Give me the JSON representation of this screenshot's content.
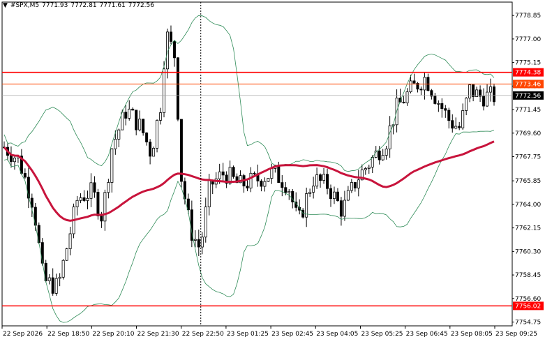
{
  "header": {
    "menu_arrow": "▼",
    "symbol": "#SPX,M5",
    "open": "7771.93",
    "high": "7772.81",
    "low": "7771.61",
    "close": "7772.56"
  },
  "price_axis": {
    "ticks": [
      "7778.85",
      "7777.00",
      "7775.15",
      "7773.30",
      "7771.45",
      "7769.60",
      "7767.75",
      "7765.85",
      "7764.00",
      "7762.15",
      "7760.30",
      "7758.45",
      "7756.60",
      "7754.75"
    ],
    "ylim": [
      7754.45,
      7779.9
    ]
  },
  "time_axis": {
    "ticks": [
      "22 Sep 2026",
      "22 Sep 18:50",
      "22 Sep 20:10",
      "22 Sep 21:30",
      "22 Sep 22:50",
      "23 Sep 01:25",
      "23 Sep 02:45",
      "23 Sep 04:05",
      "23 Sep 05:25",
      "23 Sep 06:45",
      "23 Sep 08:05",
      "23 Sep 09:25"
    ]
  },
  "price_labels": {
    "resistance_top": "7774.38",
    "resistance_mid": "7773.46",
    "current": "7772.56",
    "support": "7756.02"
  },
  "colors": {
    "resistance_line": "#ff0000",
    "resistance_mid_line": "#ff4500",
    "support_line": "#ff0000",
    "moving_average": "#c8143c",
    "bollinger": "#2e8b57",
    "candles": "#000000",
    "current_label_bg": "#000000",
    "grid": "#c0c0c0"
  },
  "chart_data": {
    "type": "candlestick",
    "series": [
      {
        "name": "",
        "kind": "candles",
        "candle_count": 142
      },
      {
        "name": "",
        "kind": "moving-average"
      },
      {
        "name": "",
        "kind": "bollinger-bands"
      }
    ],
    "horizontal_lines": [
      7774.38,
      7773.46,
      7756.02
    ],
    "vertical_marker": "22 Sep 22:50",
    "ylim": [
      7754.45,
      7779.9
    ],
    "grid": false
  }
}
